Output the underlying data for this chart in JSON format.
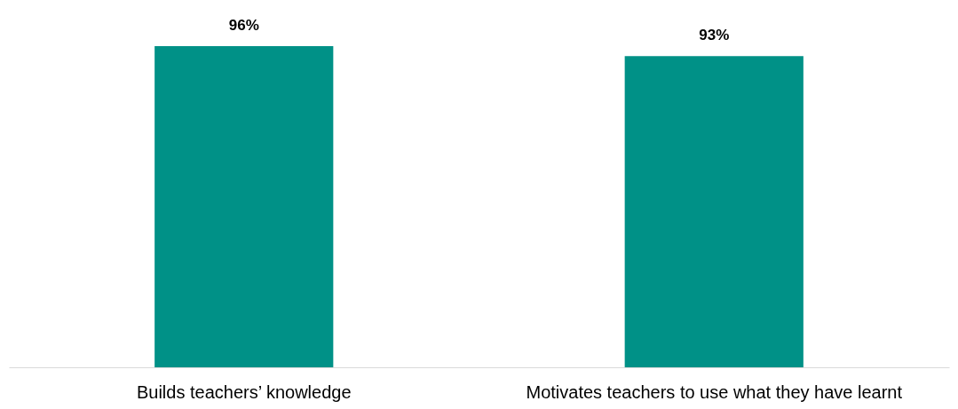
{
  "chart_data": {
    "type": "bar",
    "categories": [
      "Builds teachers’ knowledge",
      "Motivates teachers to use what they have learnt"
    ],
    "values": [
      96,
      93
    ],
    "color": "#009187",
    "value_labels": [
      "96%",
      "93%"
    ],
    "grid": false
  }
}
